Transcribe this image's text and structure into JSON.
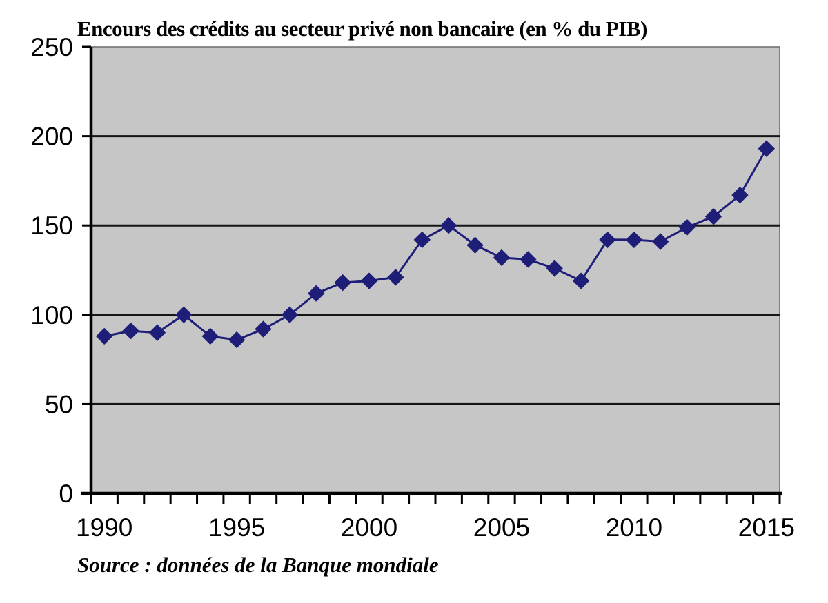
{
  "chart_data": {
    "type": "line",
    "title": "Encours des crédits au secteur privé non bancaire (en % du PIB)",
    "source": "Source : données de la Banque mondiale",
    "x": [
      1990,
      1991,
      1992,
      1993,
      1994,
      1995,
      1996,
      1997,
      1998,
      1999,
      2000,
      2001,
      2002,
      2003,
      2004,
      2005,
      2006,
      2007,
      2008,
      2009,
      2010,
      2011,
      2012,
      2013,
      2014,
      2015
    ],
    "values": [
      88,
      91,
      90,
      100,
      88,
      86,
      92,
      100,
      112,
      118,
      119,
      121,
      142,
      150,
      139,
      132,
      131,
      126,
      119,
      142,
      142,
      141,
      149,
      155,
      167,
      193
    ],
    "x_tick_labels": [
      "1990",
      "1995",
      "2000",
      "2005",
      "2010",
      "2015"
    ],
    "y_ticks": [
      0,
      50,
      100,
      150,
      200,
      250
    ],
    "ylim": [
      0,
      250
    ],
    "grid": "horizontal",
    "legend": "none",
    "marker": "diamond",
    "colors": {
      "line": "#1e1e78",
      "marker": "#1e1e78",
      "plot_bg": "#c6c6c6",
      "gridline": "#151515",
      "axis": "#000000",
      "text": "#000000",
      "plot_border": "#6a6a6a"
    }
  }
}
